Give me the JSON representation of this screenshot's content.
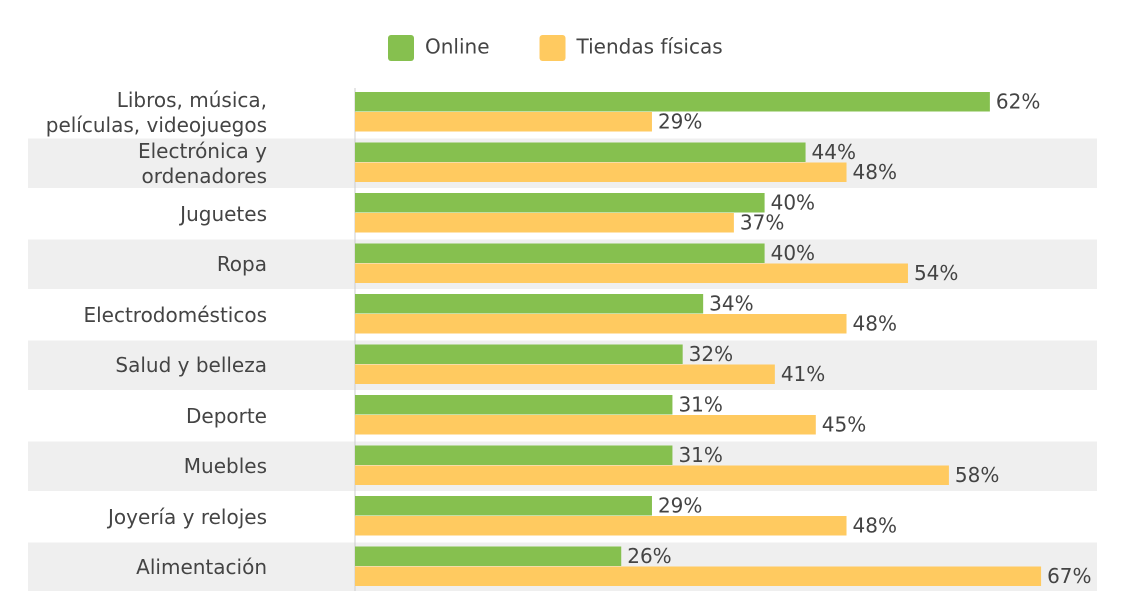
{
  "chart_data": {
    "type": "bar",
    "orientation": "horizontal",
    "categories": [
      "Libros, música, películas, videojuegos",
      "Electrónica y ordenadores",
      "Juguetes",
      "Ropa",
      "Electrodomésticos",
      "Salud y belleza",
      "Deporte",
      "Muebles",
      "Joyería y relojes",
      "Alimentación"
    ],
    "series": [
      {
        "name": "Online",
        "color": "#86c04f",
        "values": [
          62,
          44,
          40,
          40,
          34,
          32,
          31,
          31,
          29,
          26
        ],
        "value_labels": [
          "62%",
          "44%",
          "40%",
          "40%",
          "34%",
          "32%",
          "31%",
          "31%",
          "29%",
          "26%"
        ]
      },
      {
        "name": "Tiendas físicas",
        "color": "#ffca60",
        "values": [
          29,
          48,
          37,
          54,
          48,
          41,
          45,
          58,
          48,
          67
        ],
        "value_labels": [
          "29%",
          "48%",
          "37%",
          "54%",
          "48%",
          "41%",
          "45%",
          "58%",
          "48%",
          "67%"
        ]
      }
    ],
    "legend": "top"
  }
}
